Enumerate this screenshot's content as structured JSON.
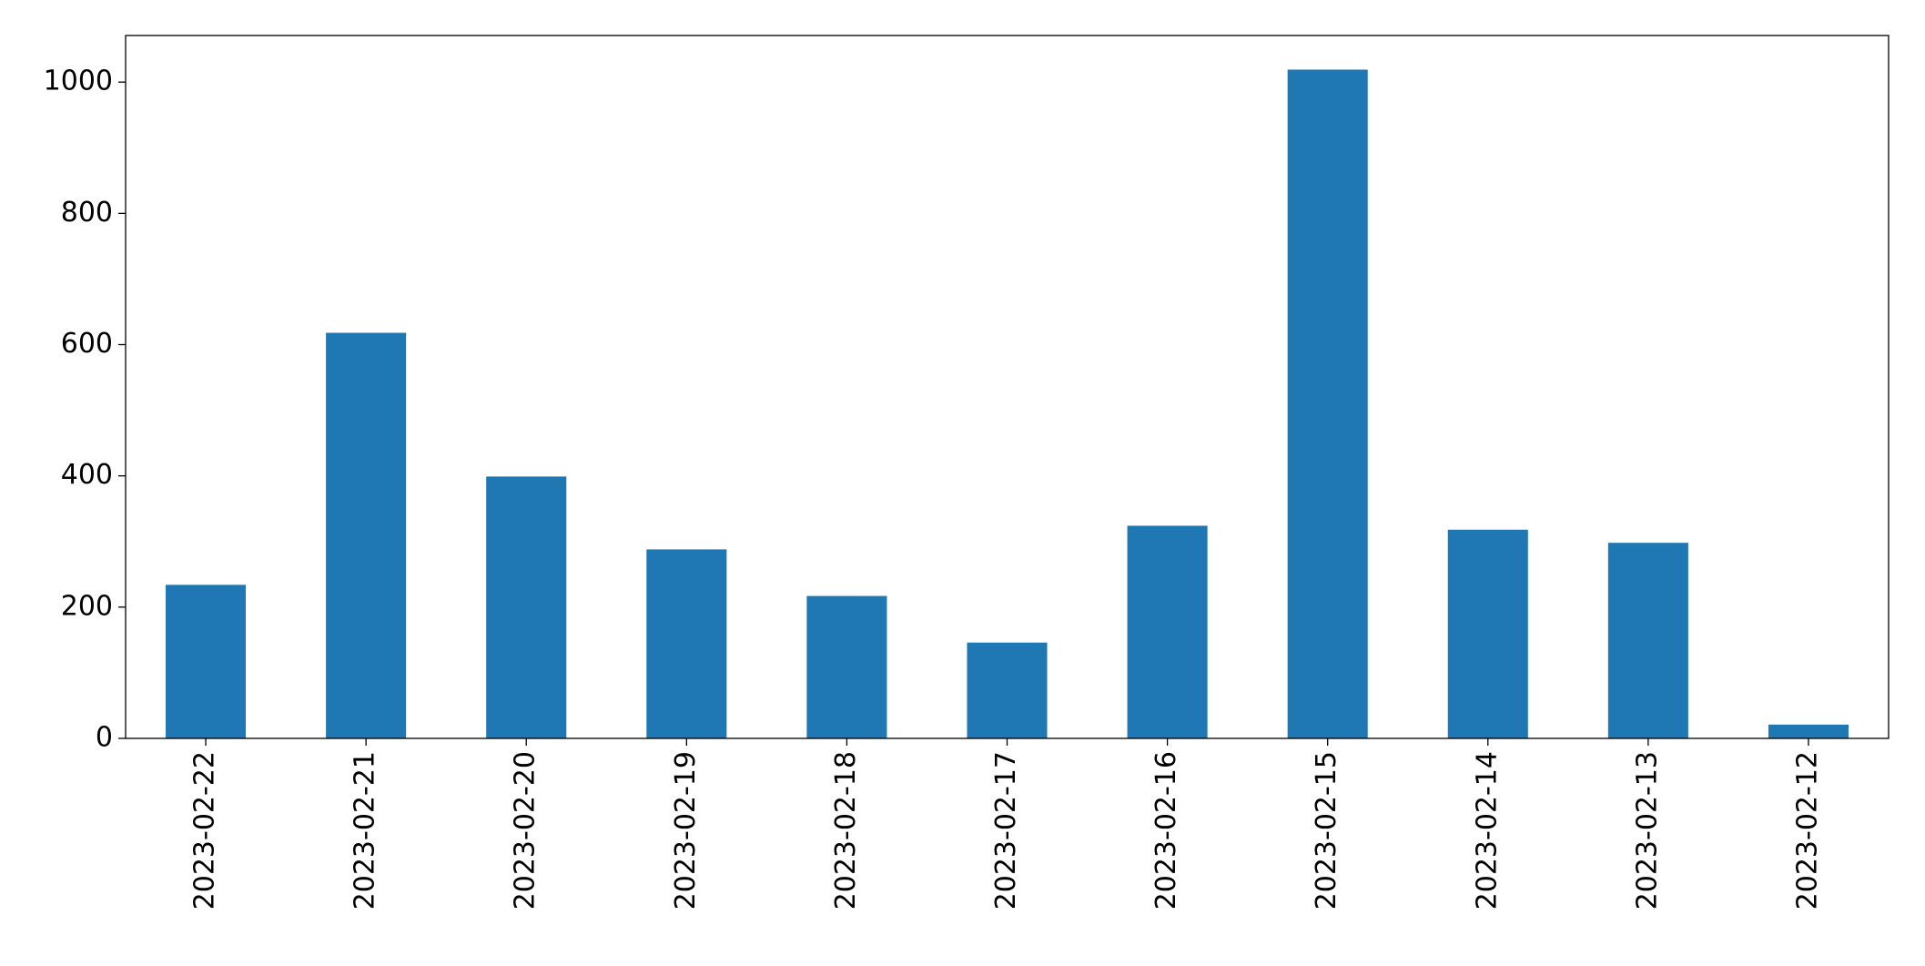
{
  "chart_data": {
    "type": "bar",
    "categories": [
      "2023-02-22",
      "2023-02-21",
      "2023-02-20",
      "2023-02-19",
      "2023-02-18",
      "2023-02-17",
      "2023-02-16",
      "2023-02-15",
      "2023-02-14",
      "2023-02-13",
      "2023-02-12"
    ],
    "values": [
      234,
      618,
      399,
      288,
      217,
      146,
      324,
      1019,
      318,
      298,
      21
    ],
    "color": "#1f77b4",
    "ylim": [
      0,
      1071
    ],
    "yticks": [
      0,
      200,
      400,
      600,
      800,
      1000
    ],
    "grid": false
  }
}
